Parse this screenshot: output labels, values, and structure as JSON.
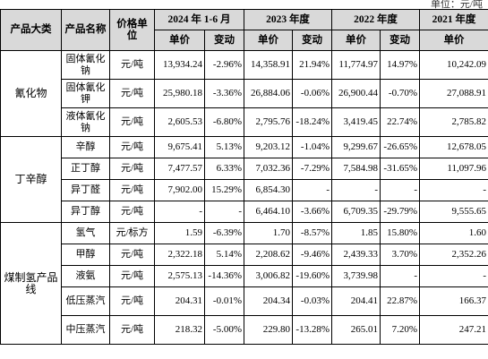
{
  "unit": "单位：元/吨",
  "columns": {
    "category": "产品大类",
    "product": "产品名称",
    "price_unit": "价格单位",
    "periods": [
      "2024 年 1-6 月",
      "2023 年度",
      "2022 年度",
      "2021 年度"
    ],
    "price": "单价",
    "change": "变动"
  },
  "groups": [
    {
      "name": "氰化物",
      "rows": [
        [
          "固体氰化钠",
          "元/吨",
          "13,934.24",
          "-2.96%",
          "14,358.91",
          "21.94%",
          "11,774.97",
          "14.97%",
          "10,242.09"
        ],
        [
          "固体氰化钾",
          "元/吨",
          "25,980.18",
          "-3.36%",
          "26,884.06",
          "-0.06%",
          "26,900.44",
          "-0.70%",
          "27,088.91"
        ],
        [
          "液体氰化钠",
          "元/吨",
          "2,605.53",
          "-6.80%",
          "2,795.76",
          "-18.24%",
          "3,419.45",
          "22.74%",
          "2,785.82"
        ]
      ]
    },
    {
      "name": "丁辛醇",
      "rows": [
        [
          "辛醇",
          "元/吨",
          "9,675.41",
          "5.13%",
          "9,203.12",
          "-1.04%",
          "9,299.67",
          "-26.65%",
          "12,678.05"
        ],
        [
          "正丁醇",
          "元/吨",
          "7,477.57",
          "6.33%",
          "7,032.36",
          "-7.29%",
          "7,584.98",
          "-31.65%",
          "11,097.96"
        ],
        [
          "异丁醛",
          "元/吨",
          "7,902.00",
          "15.29%",
          "6,854.30",
          "-",
          "-",
          "-",
          "-"
        ],
        [
          "异丁醇",
          "元/吨",
          "-",
          "-",
          "6,464.10",
          "-3.66%",
          "6,709.35",
          "-29.79%",
          "9,555.65"
        ]
      ]
    },
    {
      "name": "煤制氢产品线",
      "rows": [
        [
          "氢气",
          "元/标方",
          "1.59",
          "-6.39%",
          "1.70",
          "-8.57%",
          "1.85",
          "15.80%",
          "1.60"
        ],
        [
          "甲醇",
          "元/吨",
          "2,322.18",
          "5.14%",
          "2,208.62",
          "-9.46%",
          "2,439.33",
          "3.70%",
          "2,352.26"
        ],
        [
          "液氨",
          "元/吨",
          "2,575.13",
          "-14.36%",
          "3,006.82",
          "-19.60%",
          "3,739.98",
          "-",
          "-"
        ],
        [
          "低压蒸汽",
          "元/吨",
          "204.31",
          "-0.01%",
          "204.34",
          "-0.03%",
          "204.41",
          "22.87%",
          "166.37"
        ],
        [
          "中压蒸汽",
          "元/吨",
          "218.32",
          "-5.00%",
          "229.80",
          "-13.28%",
          "265.01",
          "7.20%",
          "247.21"
        ]
      ]
    }
  ]
}
